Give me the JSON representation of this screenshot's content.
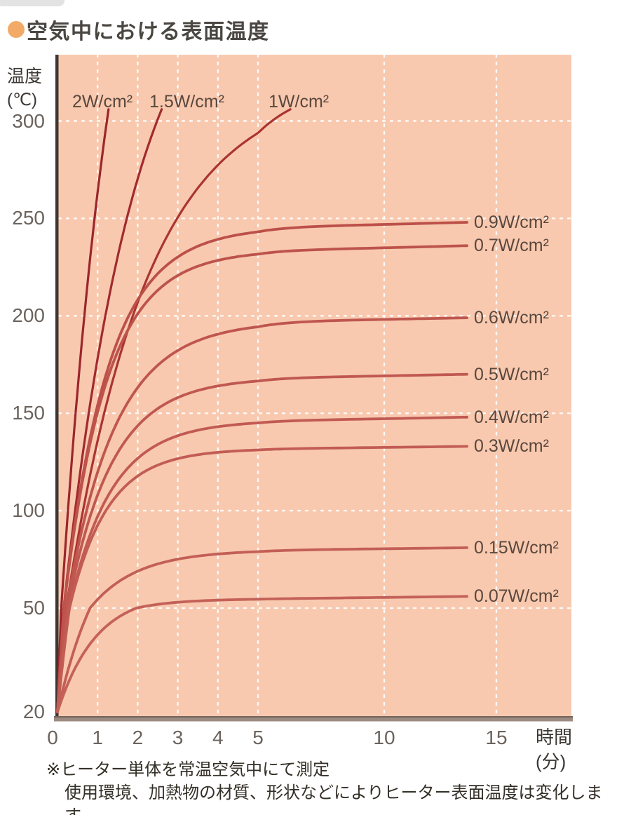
{
  "header": {
    "title": "空気中における表面温度",
    "bullet_color": "#f3aa67"
  },
  "y_axis": {
    "label_line1": "温度",
    "label_line2": "(℃)",
    "ticks": [
      "300",
      "250",
      "200",
      "150",
      "100",
      "50",
      "20"
    ]
  },
  "x_axis": {
    "label_line1": "時間",
    "label_line2": "(分)",
    "ticks": [
      "0",
      "1",
      "2",
      "3",
      "4",
      "5",
      "10",
      "15"
    ]
  },
  "footnote": {
    "line1": "※ヒーター単体を常温空気中にて測定",
    "line2": "使用環境、加熱物の材質、形状などによりヒーター表面温度は変化します。"
  },
  "colors": {
    "plot_background": "#f8c9af",
    "grid": "#ffffff",
    "axis_line": "#3e3632",
    "baseline_bar": "#9c8b81",
    "baseline_bar_edge": "#75655e",
    "tick_text": "#6b635d",
    "curve_label_text": "#5a473d",
    "title_text": "#4a4642",
    "note_text": "#343028"
  },
  "chart_data": {
    "type": "line",
    "title": "空気中における表面温度",
    "xlabel": "時間(分)",
    "ylabel": "温度(℃)",
    "start_temp_c": 20,
    "x_ticks": [
      0,
      1,
      2,
      3,
      4,
      5,
      10,
      15
    ],
    "y_ticks": [
      300,
      250,
      200,
      150,
      100,
      50,
      20
    ],
    "ylim": [
      20,
      334
    ],
    "grid": true,
    "axis_layout": "x scale expanded 0-5 min, compressed 5-15 min; y scale compressed below 50°C",
    "series": [
      {
        "id": "2w",
        "label": "2W/cm²",
        "power_w_per_cm2": 2,
        "exits_top": true,
        "reaches_305c_at_min": 1.3,
        "model": {
          "T_inf": 520,
          "tau": 1.5
        },
        "color": "#9c262c",
        "width": 3.2,
        "label_anchor": "top"
      },
      {
        "id": "1p5w",
        "label": "1.5W/cm²",
        "power_w_per_cm2": 1.5,
        "exits_top": true,
        "reaches_305c_at_min": 2.6,
        "model": {
          "T_inf": 400,
          "tau": 1.86
        },
        "color": "#a22a2e",
        "width": 3.2,
        "label_anchor": "top"
      },
      {
        "id": "1w",
        "label": "1W/cm²",
        "power_w_per_cm2": 1,
        "exits_top": true,
        "reaches_305c_at_min": 6.3,
        "model": {
          "T_inf": 320,
          "tau": 2.05
        },
        "color": "#aa3432",
        "width": 3.2,
        "label_anchor": "top"
      },
      {
        "id": "0p9w",
        "label": "0.9W/cm²",
        "power_w_per_cm2": 0.9,
        "plateau_c": 248,
        "model": {
          "tau": 1.1,
          "drift": 4
        },
        "color": "#bc5049",
        "width": 3.8,
        "label_anchor": "right"
      },
      {
        "id": "0p7w",
        "label": "0.7W/cm²",
        "power_w_per_cm2": 0.7,
        "plateau_c": 236,
        "model": {
          "tau": 1.05,
          "drift": 4
        },
        "color": "#bd534b",
        "width": 3.8,
        "label_anchor": "right"
      },
      {
        "id": "0p6w",
        "label": "0.6W/cm²",
        "power_w_per_cm2": 0.6,
        "plateau_c": 199,
        "model": {
          "tau": 1.2,
          "drift": 3
        },
        "color": "#bf564e",
        "width": 3.8,
        "label_anchor": "right"
      },
      {
        "id": "0p5w",
        "label": "0.5W/cm²",
        "power_w_per_cm2": 0.5,
        "plateau_c": 170,
        "model": {
          "tau": 1.1,
          "drift": 3
        },
        "color": "#c05850",
        "width": 3.8,
        "label_anchor": "right"
      },
      {
        "id": "0p4w",
        "label": "0.4W/cm²",
        "power_w_per_cm2": 0.4,
        "plateau_c": 148,
        "model": {
          "tau": 1.05,
          "drift": 3
        },
        "color": "#c15a52",
        "width": 3.8,
        "label_anchor": "right"
      },
      {
        "id": "0p3w",
        "label": "0.3W/cm²",
        "power_w_per_cm2": 0.3,
        "plateau_c": 133,
        "model": {
          "tau": 0.95,
          "drift": 2
        },
        "color": "#c25c54",
        "width": 3.8,
        "label_anchor": "right"
      },
      {
        "id": "0p15w",
        "label": "0.15W/cm²",
        "power_w_per_cm2": 0.15,
        "plateau_c": 81,
        "model": {
          "tau": 1.15,
          "drift": 2
        },
        "color": "#c35f56",
        "width": 3.8,
        "label_anchor": "right"
      },
      {
        "id": "0p07w",
        "label": "0.07W/cm²",
        "power_w_per_cm2": 0.07,
        "plateau_c": 56,
        "model": {
          "tau": 0.95,
          "drift": 2
        },
        "color": "#c46158",
        "width": 3.8,
        "label_anchor": "right"
      }
    ]
  }
}
